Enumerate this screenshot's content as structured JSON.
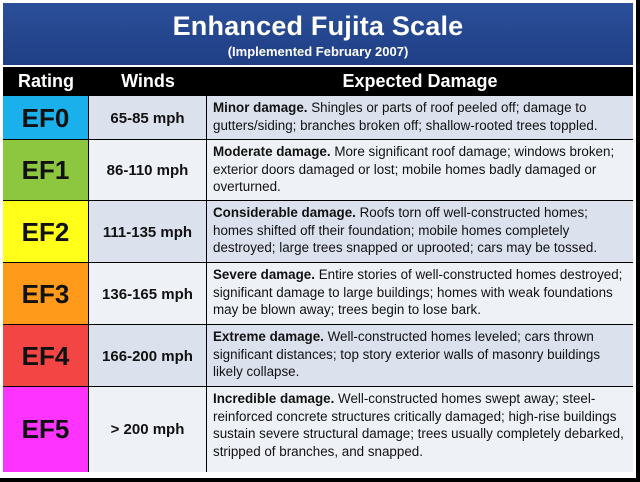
{
  "header": {
    "title": "Enhanced Fujita Scale",
    "subtitle": "(Implemented February 2007)"
  },
  "columns": {
    "rating": "Rating",
    "winds": "Winds",
    "damage": "Expected Damage"
  },
  "rows": [
    {
      "rating": "EF0",
      "winds": "65-85 mph",
      "damage_title": "Minor damage.",
      "damage_text": "Shingles or parts of roof peeled off; damage to gutters/siding; branches broken off; shallow-rooted trees toppled.",
      "color": "#1ab0ec"
    },
    {
      "rating": "EF1",
      "winds": "86-110 mph",
      "damage_title": "Moderate damage.",
      "damage_text": "More significant roof damage; windows broken; exterior doors damaged or lost; mobile homes badly damaged or overturned.",
      "color": "#8dc63f"
    },
    {
      "rating": "EF2",
      "winds": "111-135 mph",
      "damage_title": "Considerable damage.",
      "damage_text": "Roofs torn off well-constructed homes; homes shifted off their foundation; mobile homes completely destroyed; large trees snapped or uprooted; cars may be tossed.",
      "color": "#ffff1a"
    },
    {
      "rating": "EF3",
      "winds": "136-165 mph",
      "damage_title": "Severe damage.",
      "damage_text": "Entire stories of well-constructed homes destroyed; significant damage to large buildings; homes with weak foundations may be blown away; trees begin to lose bark.",
      "color": "#ff9a1a"
    },
    {
      "rating": "EF4",
      "winds": "166-200 mph",
      "damage_title": "Extreme damage.",
      "damage_text": "Well-constructed homes leveled; cars thrown significant distances; top story exterior walls of masonry buildings likely collapse.",
      "color": "#f44545"
    },
    {
      "rating": "EF5",
      "winds": "> 200 mph",
      "damage_title": "Incredible damage.",
      "damage_text": "Well-constructed homes swept away; steel-reinforced concrete structures critically damaged; high-rise buildings sustain severe structural damage; trees usually completely debarked, stripped of branches, and snapped.",
      "color": "#ff33ff"
    }
  ]
}
